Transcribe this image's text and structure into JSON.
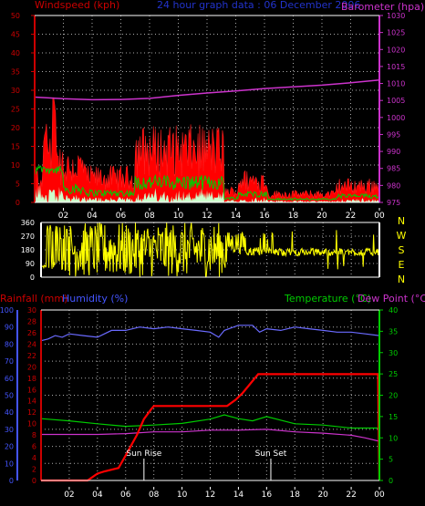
{
  "header": {
    "left_label": "Windspeed (kph)",
    "center_label": "24 hour graph data : 06 December 2006",
    "right_label": "Barometer (hpa)"
  },
  "colors": {
    "windspeed": "#ff0000",
    "gust": "#ff2020",
    "wind_avg": "#00cc00",
    "wind_light": "#ccffcc",
    "barometer": "#cc33cc",
    "direction": "#ffff00",
    "rainfall": "#ff0000",
    "humidity": "#6a6aff",
    "temperature": "#00cc00",
    "dewpoint": "#cc33cc",
    "grid": "#aaaaaa",
    "left_axis_red": "#cc0000",
    "left_axis_blue": "#4455ff",
    "right_axis_magenta": "#cc33cc",
    "right_axis_green": "#00cc00",
    "sun_label": "#ffffff"
  },
  "time_ticks": [
    "02",
    "04",
    "06",
    "08",
    "10",
    "12",
    "14",
    "16",
    "18",
    "20",
    "22",
    "00"
  ],
  "panel_wind": {
    "left_ticks": [
      "0",
      "5",
      "10",
      "15",
      "20",
      "25",
      "30",
      "35",
      "40",
      "45",
      "50"
    ],
    "right_ticks": [
      "975",
      "980",
      "985",
      "990",
      "995",
      "1000",
      "1005",
      "1010",
      "1015",
      "1020",
      "1025",
      "1030"
    ]
  },
  "panel_dir": {
    "left_ticks": [
      "0",
      "90",
      "180",
      "270",
      "360"
    ],
    "compass": [
      "N",
      "W",
      "S",
      "E",
      "N"
    ]
  },
  "panel_temp": {
    "rainfall_label": "Rainfall (mm)",
    "humidity_label": "Humidity (%)",
    "temperature_label": "Temperature (°C)",
    "dewpoint_label": "Dew Point (°C)",
    "humidity_ticks": [
      "0",
      "10",
      "20",
      "30",
      "40",
      "50",
      "60",
      "70",
      "80",
      "90",
      "100"
    ],
    "rain_ticks": [
      "0",
      "2",
      "4",
      "6",
      "8",
      "10",
      "12",
      "14",
      "16",
      "18",
      "20",
      "22",
      "24",
      "26",
      "28",
      "30"
    ],
    "temp_ticks": [
      "0",
      "5",
      "10",
      "15",
      "20",
      "25",
      "30",
      "35",
      "40"
    ],
    "sunrise_label": "Sun Rise",
    "sunset_label": "Sun Set"
  },
  "chart_data": [
    {
      "type": "line",
      "title": "24 hour graph data : 06 December 2006",
      "x": "hours 0-24",
      "series": [
        {
          "name": "Windspeed (kph)",
          "axis": "left",
          "ylim": [
            0,
            50
          ]
        },
        {
          "name": "Barometer (hpa)",
          "axis": "right",
          "ylim": [
            975,
            1030
          ],
          "x": [
            0,
            2,
            4,
            6,
            8,
            10,
            12,
            14,
            16,
            18,
            20,
            22,
            24
          ],
          "values": [
            1006.0,
            1005.5,
            1005.2,
            1005.3,
            1005.6,
            1006.5,
            1007.2,
            1007.8,
            1008.5,
            1009.0,
            1009.5,
            1010.2,
            1011.0
          ]
        }
      ]
    },
    {
      "type": "line",
      "x": "hours 0-24",
      "series": [
        {
          "name": "Wind direction",
          "ylim": [
            0,
            360
          ]
        }
      ]
    },
    {
      "type": "line",
      "x": "hours 0-24",
      "series": [
        {
          "name": "Rainfall (mm)",
          "axis": "left-inner",
          "ylim": [
            0,
            30
          ],
          "x": [
            0,
            3.3,
            4.0,
            4.5,
            5.5,
            6.0,
            6.8,
            7.3,
            7.8,
            8.0,
            13.2,
            13.8,
            14.3,
            15.4,
            23.8,
            23.9,
            24
          ],
          "values": [
            0,
            0,
            1.2,
            1.6,
            2.2,
            4.4,
            8.0,
            10.8,
            12.5,
            13.1,
            13.1,
            14.2,
            15.4,
            18.7,
            18.7,
            18.7,
            0
          ]
        },
        {
          "name": "Humidity (%)",
          "axis": "left-outer",
          "ylim": [
            0,
            100
          ],
          "x": [
            0,
            0.5,
            1,
            1.5,
            2,
            3,
            4,
            5,
            6,
            7,
            8,
            9,
            10,
            11,
            12,
            12.6,
            13,
            14,
            15,
            15.5,
            16,
            17,
            18,
            19,
            20,
            21,
            22,
            23,
            24
          ],
          "values": [
            82,
            83,
            85,
            84,
            86,
            85,
            84,
            88,
            88,
            90,
            89,
            90,
            89,
            88,
            87,
            84,
            88,
            91,
            91,
            87,
            89,
            88,
            90,
            89,
            88,
            87,
            87,
            86,
            85
          ]
        },
        {
          "name": "Temperature (°C)",
          "axis": "right",
          "ylim": [
            0,
            40
          ],
          "x": [
            0,
            2,
            4,
            6,
            8,
            10,
            12,
            13,
            14,
            15,
            16,
            18,
            20,
            22,
            24
          ],
          "values": [
            14.5,
            14,
            13.3,
            12.7,
            13.0,
            13.4,
            14.4,
            15.4,
            14.5,
            14.0,
            15.0,
            13.3,
            13.0,
            12.3,
            12.3
          ]
        },
        {
          "name": "Dew Point (°C)",
          "axis": "right",
          "ylim": [
            0,
            40
          ],
          "x": [
            0,
            2,
            4,
            6,
            8,
            10,
            12,
            14,
            16,
            18,
            20,
            22,
            23,
            24
          ],
          "values": [
            10.8,
            10.8,
            10.8,
            11.0,
            11.4,
            11.4,
            11.8,
            11.8,
            12.0,
            11.4,
            11.1,
            10.6,
            10.0,
            9.2
          ]
        }
      ],
      "annotations": [
        {
          "text": "Sun Rise",
          "x": 7.3
        },
        {
          "text": "Sun Set",
          "x": 16.3
        }
      ]
    }
  ]
}
